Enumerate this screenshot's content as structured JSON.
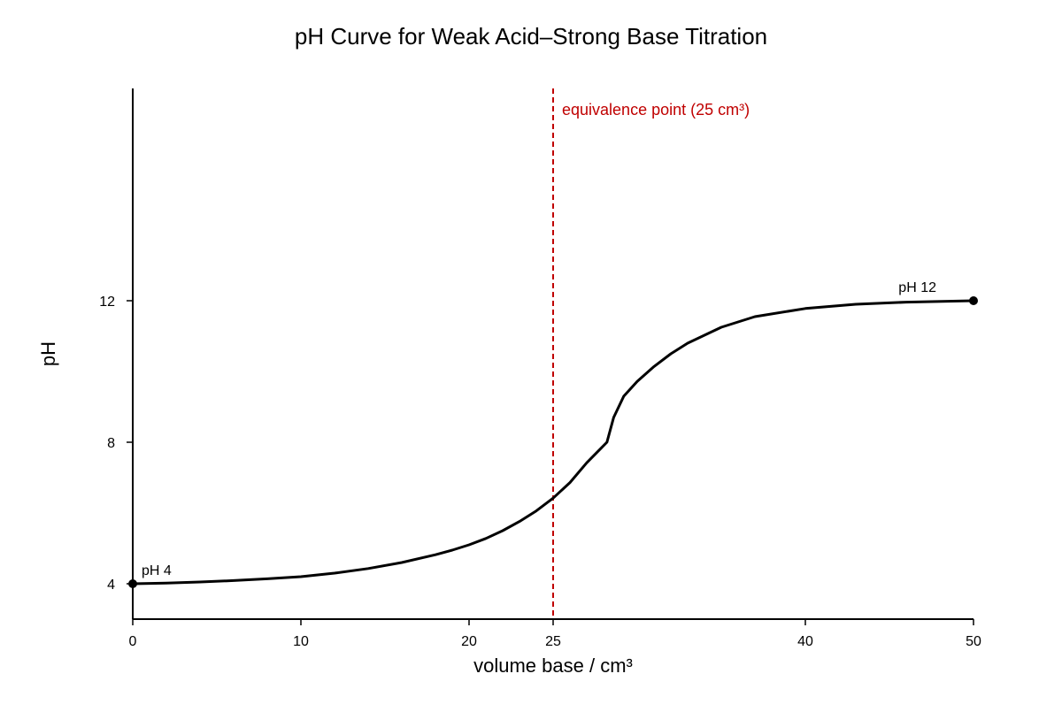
{
  "chart_data": {
    "type": "line",
    "title": "pH Curve for Weak Acid–Strong Base Titration",
    "xlabel": "volume base / cm³",
    "ylabel": "pH",
    "x_ticks": [
      {
        "value": 0,
        "label": "0"
      },
      {
        "value": 10,
        "label": "10"
      },
      {
        "value": 20,
        "label": "20"
      },
      {
        "value": 25,
        "label": "25"
      },
      {
        "value": 40,
        "label": "40"
      },
      {
        "value": 50,
        "label": "50"
      }
    ],
    "y_ticks": [
      {
        "value": 4,
        "label": "4"
      },
      {
        "value": 8,
        "label": "8"
      },
      {
        "value": 12,
        "label": "12"
      }
    ],
    "xlim": [
      0,
      50
    ],
    "ylim": [
      3,
      18
    ],
    "grid": false,
    "series": [
      {
        "points": [
          [
            0,
            4.0
          ],
          [
            2,
            4.02
          ],
          [
            4,
            4.05
          ],
          [
            6,
            4.09
          ],
          [
            8,
            4.14
          ],
          [
            10,
            4.2
          ],
          [
            12,
            4.3
          ],
          [
            14,
            4.43
          ],
          [
            16,
            4.6
          ],
          [
            18,
            4.82
          ],
          [
            19,
            4.95
          ],
          [
            20,
            5.1
          ],
          [
            21,
            5.28
          ],
          [
            22,
            5.5
          ],
          [
            23,
            5.76
          ],
          [
            24,
            6.06
          ],
          [
            25,
            6.42
          ],
          [
            26,
            6.86
          ],
          [
            27,
            7.42
          ],
          [
            28.2,
            8.0
          ],
          [
            28.6,
            8.7
          ],
          [
            29.2,
            9.3
          ],
          [
            30,
            9.72
          ],
          [
            31,
            10.14
          ],
          [
            32,
            10.5
          ],
          [
            33,
            10.8
          ],
          [
            35,
            11.25
          ],
          [
            37,
            11.55
          ],
          [
            40,
            11.78
          ],
          [
            43,
            11.9
          ],
          [
            46,
            11.96
          ],
          [
            50,
            12.0
          ]
        ],
        "color": "#000000"
      }
    ],
    "annotations": [
      {
        "x": 0,
        "y": 4,
        "label": "pH 4"
      },
      {
        "x": 50,
        "y": 12,
        "label": "pH 12"
      }
    ],
    "equivalence_line": {
      "x": 25,
      "label": "equivalence point (25 cm³)",
      "color": "#c00000"
    }
  }
}
